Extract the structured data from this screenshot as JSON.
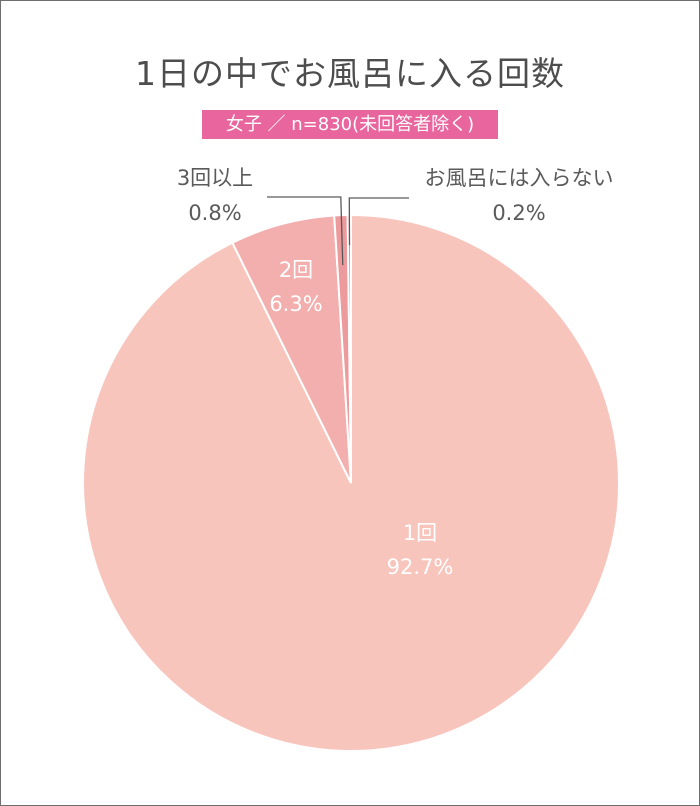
{
  "chart_data": {
    "type": "pie",
    "title": "1日の中でお風呂に入る回数",
    "subtitle": "女子 ／ n=830(未回答者除く)",
    "slices": [
      {
        "label": "1回",
        "value": 92.7,
        "value_text": "92.7%",
        "color": "#f8c5bd"
      },
      {
        "label": "2回",
        "value": 6.3,
        "value_text": "6.3%",
        "color": "#f3aeae"
      },
      {
        "label": "3回以上",
        "value": 0.8,
        "value_text": "0.8%",
        "color": "#ec9a9c"
      },
      {
        "label": "お風呂には入らない",
        "value": 0.2,
        "value_text": "0.2%",
        "color": "#e4878a"
      }
    ],
    "slice_border_color": "#ffffff",
    "leader_line_color": "#5a5a5a",
    "legend": "none"
  }
}
